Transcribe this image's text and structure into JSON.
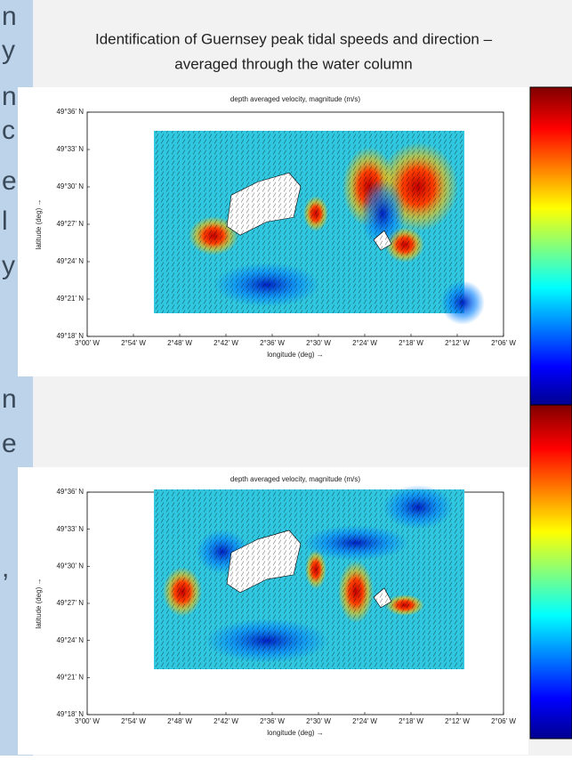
{
  "left_fragments": [
    "n",
    "y",
    "n",
    "c",
    "e",
    "l",
    "y",
    "n",
    "e",
    ","
  ],
  "header": {
    "title_lines": [
      "Identification of Guernsey peak tidal speeds and direction –",
      "averaged through the water column"
    ]
  },
  "plots": [
    {
      "title": "depth averaged velocity, magnitude (m/s)",
      "xlabel": "longitude (deg) →",
      "ylabel": "latitude (deg) →",
      "yticks": [
        "49°36' N",
        "49°33' N",
        "49°30' N",
        "49°27' N",
        "49°24' N",
        "49°21' N",
        "49°18' N"
      ],
      "xticks": [
        "3°00' W",
        "2°54' W",
        "2°48' W",
        "2°42' W",
        "2°36' W",
        "2°30' W",
        "2°24' W",
        "2°18' W",
        "2°12' W",
        "2°06' W"
      ]
    },
    {
      "title": "depth averaged velocity, magnitude (m/s)",
      "xlabel": "longitude (deg) →",
      "ylabel": "latitude (deg) →",
      "yticks": [
        "49°36' N",
        "49°33' N",
        "49°30' N",
        "49°27' N",
        "49°24' N",
        "49°21' N",
        "49°18' N"
      ],
      "xticks": [
        "3°00' W",
        "2°54' W",
        "2°48' W",
        "2°42' W",
        "2°36' W",
        "2°30' W",
        "2°24' W",
        "2°18' W",
        "2°12' W",
        "2°06' W"
      ]
    }
  ]
}
